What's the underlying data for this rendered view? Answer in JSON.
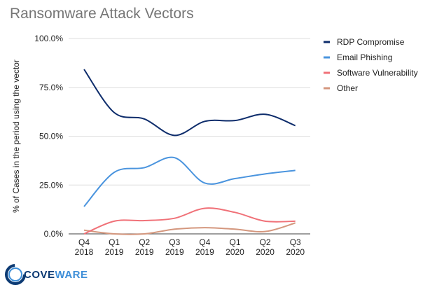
{
  "chart_data": {
    "type": "line",
    "title": "Ransomware Attack Vectors",
    "xlabel": "",
    "ylabel": "% of Cases in the period using the vector",
    "categories": [
      [
        "Q4",
        "2018"
      ],
      [
        "Q1",
        "2019"
      ],
      [
        "Q2",
        "2019"
      ],
      [
        "Q3",
        "2019"
      ],
      [
        "Q4",
        "2019"
      ],
      [
        "Q1",
        "2020"
      ],
      [
        "Q2",
        "2020"
      ],
      [
        "Q3",
        "2020"
      ]
    ],
    "ylim": [
      0,
      100
    ],
    "yticks": [
      "0.0%",
      "25.0%",
      "50.0%",
      "75.0%",
      "100.0%"
    ],
    "grid": true,
    "smooth": true,
    "legend_position": "right",
    "series": [
      {
        "name": "RDP Compromise",
        "color": "#0d2c6b",
        "values": [
          84.2,
          62.1,
          58.8,
          50.4,
          57.6,
          58.0,
          61.2,
          55.4
        ]
      },
      {
        "name": "Email Phishing",
        "color": "#4a94de",
        "values": [
          14.0,
          31.5,
          33.9,
          39.0,
          26.0,
          28.3,
          30.7,
          32.5
        ]
      },
      {
        "name": "Software Vulnerability",
        "color": "#f07178",
        "values": [
          0.0,
          6.5,
          6.8,
          8.0,
          13.1,
          11.0,
          6.5,
          6.5
        ]
      },
      {
        "name": "Other",
        "color": "#d4977e",
        "values": [
          1.9,
          0.0,
          0.0,
          2.4,
          3.2,
          2.4,
          1.2,
          5.6
        ]
      }
    ]
  },
  "logo": {
    "text_a": "COVE",
    "text_b": "WARE"
  }
}
